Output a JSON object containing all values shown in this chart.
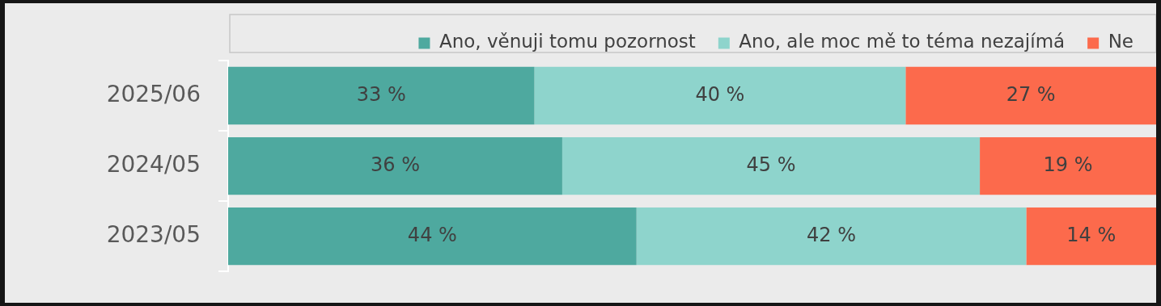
{
  "chart_data": {
    "type": "bar",
    "orientation": "horizontal",
    "stacked": true,
    "categories": [
      "2025/06",
      "2024/05",
      "2023/05"
    ],
    "series": [
      {
        "name": "Ano, věnuji tomu pozornost",
        "color": "#4ea99f",
        "values": [
          33,
          36,
          44
        ],
        "value_labels": [
          "33 %",
          "36 %",
          "44 %"
        ]
      },
      {
        "name": "Ano, ale moc mě to téma nezajímá",
        "color": "#8ed4cc",
        "values": [
          40,
          45,
          42
        ],
        "value_labels": [
          "40 %",
          "45 %",
          "42 %"
        ]
      },
      {
        "name": "Ne",
        "color": "#fc6a4c",
        "values": [
          27,
          19,
          14
        ],
        "value_labels": [
          "27 %",
          "19 %",
          "14 %"
        ]
      }
    ],
    "tick_labels": "y",
    "legend": "top"
  }
}
